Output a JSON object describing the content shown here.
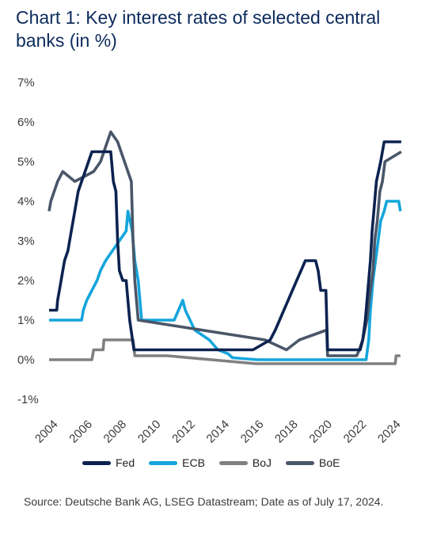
{
  "title": "Chart 1: Key interest rates of selected central banks (in %)",
  "source": "Source: Deutsche Bank AG, LSEG Datastream; Date as of July 17, 2024.",
  "chart_data": {
    "type": "line",
    "title": "Chart 1: Key interest rates of selected central banks (in %)",
    "xlabel": "",
    "ylabel": "",
    "xlim": [
      2004.0,
      2024.6
    ],
    "ylim": [
      -1,
      7
    ],
    "yticks": [
      "-1%",
      "0%",
      "1%",
      "2%",
      "3%",
      "4%",
      "5%",
      "6%",
      "7%"
    ],
    "xticks": [
      "2004",
      "2006",
      "2008",
      "2010",
      "2012",
      "2014",
      "2016",
      "2018",
      "2020",
      "2022",
      "2024"
    ],
    "grid": false,
    "legend_position": "bottom",
    "series": [
      {
        "name": "Fed",
        "color": "#0c2350",
        "x": [
          2004.0,
          2004.45,
          2004.5,
          2004.7,
          2004.9,
          2005.1,
          2005.3,
          2005.5,
          2005.7,
          2005.9,
          2006.1,
          2006.3,
          2006.5,
          2007.6,
          2007.75,
          2007.9,
          2008.0,
          2008.1,
          2008.3,
          2008.5,
          2008.7,
          2008.95,
          2015.9,
          2016.9,
          2017.2,
          2017.45,
          2017.7,
          2017.95,
          2018.2,
          2018.45,
          2018.7,
          2018.95,
          2019.55,
          2019.7,
          2019.85,
          2020.15,
          2020.25,
          2022.15,
          2022.3,
          2022.45,
          2022.6,
          2022.75,
          2022.85,
          2022.95,
          2023.1,
          2023.35,
          2023.55,
          2024.55
        ],
        "values": [
          1.25,
          1.25,
          1.5,
          2.0,
          2.5,
          2.75,
          3.25,
          3.75,
          4.25,
          4.5,
          4.75,
          5.0,
          5.25,
          5.25,
          4.5,
          4.25,
          3.0,
          2.25,
          2.0,
          2.0,
          1.0,
          0.25,
          0.25,
          0.5,
          0.75,
          1.0,
          1.25,
          1.5,
          1.75,
          2.0,
          2.25,
          2.5,
          2.5,
          2.25,
          1.75,
          1.75,
          0.25,
          0.25,
          0.5,
          1.0,
          1.75,
          2.5,
          3.25,
          3.75,
          4.5,
          5.0,
          5.5,
          5.5
        ]
      },
      {
        "name": "ECB",
        "color": "#14a5dc",
        "x": [
          2004.0,
          2005.9,
          2006.0,
          2006.2,
          2006.5,
          2006.8,
          2007.0,
          2007.3,
          2008.5,
          2008.6,
          2008.85,
          2009.0,
          2009.2,
          2009.4,
          2011.3,
          2011.55,
          2011.8,
          2011.95,
          2012.5,
          2013.35,
          2013.85,
          2014.45,
          2014.7,
          2016.15,
          2019.7,
          2022.5,
          2022.65,
          2022.75,
          2022.9,
          2023.05,
          2023.2,
          2023.35,
          2023.55,
          2023.7,
          2024.4,
          2024.5
        ],
        "values": [
          1.0,
          1.0,
          1.25,
          1.5,
          1.75,
          2.0,
          2.25,
          2.5,
          3.25,
          3.75,
          3.25,
          2.5,
          2.0,
          1.0,
          1.0,
          1.25,
          1.5,
          1.25,
          0.75,
          0.5,
          0.25,
          0.15,
          0.05,
          0.0,
          0.0,
          0.0,
          0.5,
          1.25,
          2.0,
          2.5,
          3.0,
          3.5,
          3.75,
          4.0,
          4.0,
          3.75
        ]
      },
      {
        "name": "BoJ",
        "color": "#808080",
        "x": [
          2004.0,
          2006.5,
          2006.6,
          2007.15,
          2007.2,
          2008.9,
          2009.0,
          2010.9,
          2016.05,
          2024.2,
          2024.25,
          2024.5
        ],
        "values": [
          0.0,
          0.0,
          0.25,
          0.25,
          0.5,
          0.5,
          0.1,
          0.1,
          -0.1,
          -0.1,
          0.1,
          0.1
        ]
      },
      {
        "name": "BoE",
        "color": "#4a5668",
        "x": [
          2004.0,
          2004.1,
          2004.5,
          2004.8,
          2005.5,
          2006.6,
          2007.0,
          2007.4,
          2007.6,
          2008.0,
          2008.8,
          2008.9,
          2009.0,
          2009.2,
          2016.6,
          2017.85,
          2018.6,
          2020.2,
          2020.25,
          2021.95,
          2022.1,
          2022.3,
          2022.55,
          2022.75,
          2022.9,
          2023.0,
          2023.15,
          2023.3,
          2023.45,
          2023.6,
          2024.55
        ],
        "values": [
          3.75,
          4.0,
          4.5,
          4.75,
          4.5,
          4.75,
          5.0,
          5.5,
          5.75,
          5.5,
          4.5,
          3.0,
          2.0,
          1.0,
          0.5,
          0.25,
          0.5,
          0.75,
          0.1,
          0.1,
          0.25,
          0.5,
          1.0,
          1.75,
          2.25,
          3.0,
          3.5,
          4.25,
          4.5,
          5.0,
          5.25
        ]
      }
    ]
  }
}
